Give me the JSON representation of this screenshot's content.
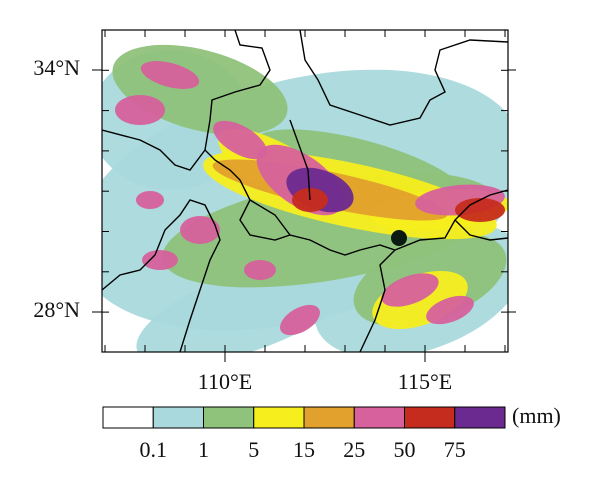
{
  "map": {
    "lat_labels": [
      "34°N",
      "28°N"
    ],
    "lon_labels": [
      "110°E",
      "115°E"
    ]
  },
  "colorbar": {
    "levels": [
      0.1,
      1,
      5,
      15,
      25,
      50,
      75
    ],
    "colors": [
      "#ffffff",
      "#a9d9dc",
      "#8fc27a",
      "#f7ee1e",
      "#e2a02c",
      "#d6619c",
      "#c62c1e",
      "#6b2a8f"
    ],
    "unit": "(mm)"
  }
}
